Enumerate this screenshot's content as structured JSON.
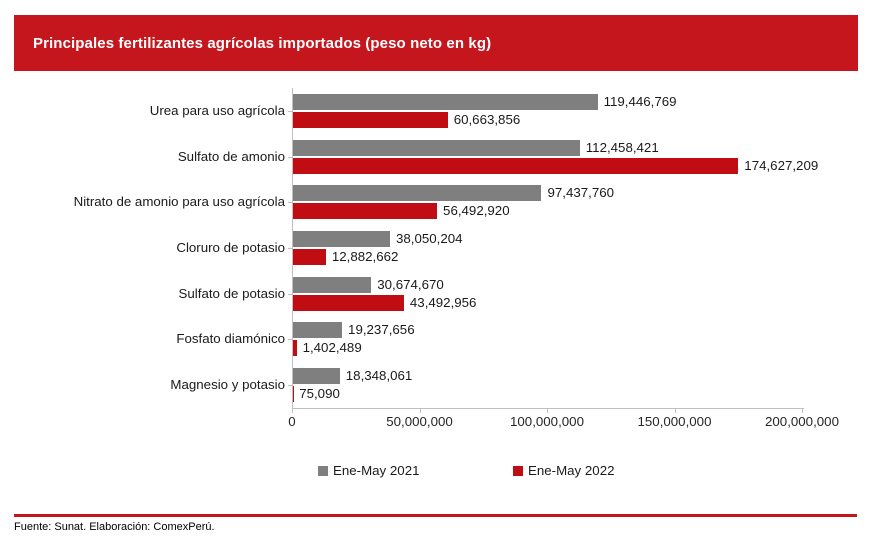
{
  "banner": {
    "title": "Principales fertilizantes agrícolas importados (peso neto en kg)"
  },
  "footer": {
    "source": "Fuente: Sunat. Elaboración: ComexPerú."
  },
  "colors": {
    "banner_red": "#C4161C",
    "divider_red": "#C4161C",
    "bar_gray": "#7F7F7F",
    "bar_red": "#C00D13",
    "axis_gray": "#BFBFBF"
  },
  "chart_data": {
    "type": "bar",
    "orientation": "horizontal",
    "title": "Principales fertilizantes agrícolas importados (peso neto en kg)",
    "categories": [
      "Urea para uso agrícola",
      "Sulfato de amonio",
      "Nitrato de amonio para uso agrícola",
      "Cloruro de potasio",
      "Sulfato de potasio",
      "Fosfato diamónico",
      "Magnesio y potasio"
    ],
    "series": [
      {
        "name": "Ene-May 2021",
        "color": "#7F7F7F",
        "values": [
          119446769,
          112458421,
          97437760,
          38050204,
          30674670,
          19237656,
          18348061
        ],
        "value_labels": [
          "119,446,769",
          "112,458,421",
          "97,437,760",
          "38,050,204",
          "30,674,670",
          "19,237,656",
          "18,348,061"
        ]
      },
      {
        "name": "Ene-May 2022",
        "color": "#C00D13",
        "values": [
          60663856,
          174627209,
          56492920,
          12882662,
          43492956,
          1402489,
          75090
        ],
        "value_labels": [
          "60,663,856",
          "174,627,209",
          "56,492,920",
          "12,882,662",
          "43,492,956",
          "1,402,489",
          "75,090"
        ]
      }
    ],
    "xlim": [
      0,
      200000000
    ],
    "x_ticks": [
      0,
      50000000,
      100000000,
      150000000,
      200000000
    ],
    "x_tick_labels": [
      "0",
      "50,000,000",
      "100,000,000",
      "150,000,000",
      "200,000,000"
    ],
    "grid": false,
    "legend_position": "bottom"
  }
}
